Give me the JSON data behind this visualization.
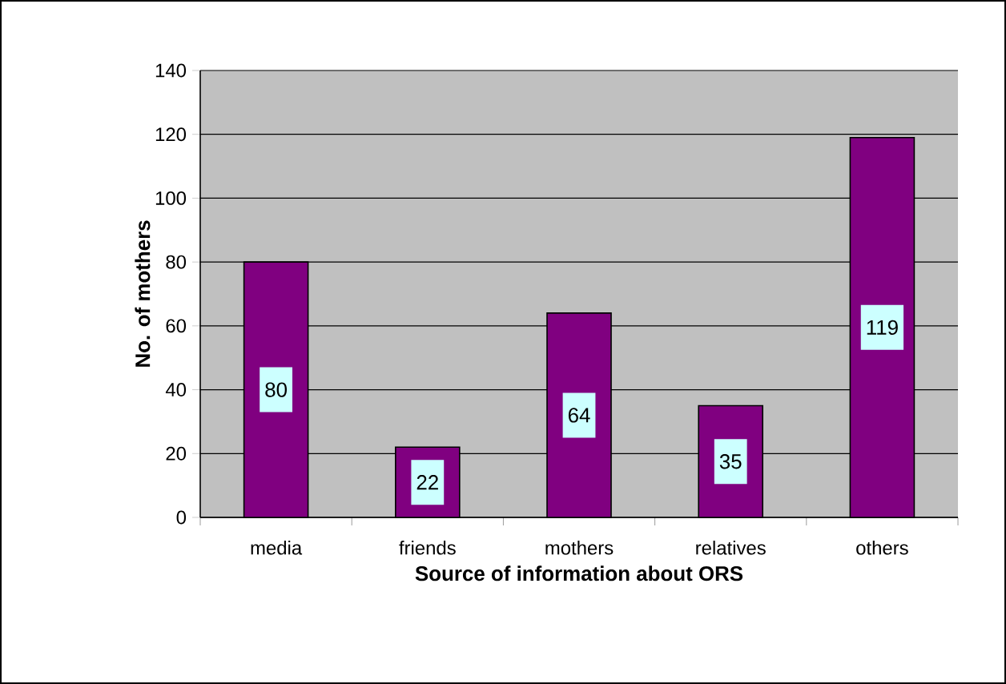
{
  "chart_data": {
    "type": "bar",
    "xlabel": "Source of information about ORS",
    "ylabel": "No. of mothers",
    "categories": [
      "media",
      "friends",
      "mothers",
      "relatives",
      "others"
    ],
    "values": [
      80,
      22,
      64,
      35,
      119
    ],
    "color": "#800080",
    "ylim": [
      0,
      140
    ],
    "yticks": [
      0,
      20,
      40,
      60,
      80,
      100,
      120,
      140
    ],
    "grid": "y",
    "data_labels": true
  }
}
